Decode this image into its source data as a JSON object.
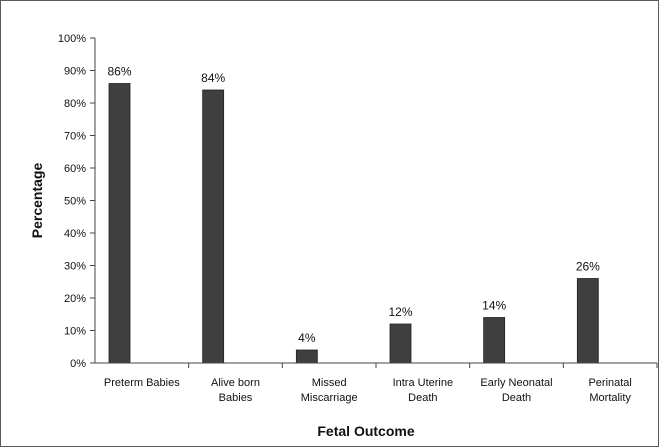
{
  "chart_data": {
    "type": "bar",
    "categories": [
      [
        "Preterm Babies"
      ],
      [
        "Alive born",
        "Babies"
      ],
      [
        "Missed",
        "Miscarriage"
      ],
      [
        "Intra Uterine",
        "Death"
      ],
      [
        "Early Neonatal",
        "Death"
      ],
      [
        "Perinatal",
        "Mortality"
      ]
    ],
    "values": [
      86,
      84,
      4,
      12,
      14,
      26
    ],
    "data_labels": [
      "86%",
      "84%",
      "4%",
      "12%",
      "14%",
      "26%"
    ],
    "xlabel": "Fetal Outcome",
    "ylabel": "Percentage",
    "ylim": [
      0,
      100
    ],
    "yticks": [
      "0%",
      "10%",
      "20%",
      "30%",
      "40%",
      "50%",
      "60%",
      "70%",
      "80%",
      "90%",
      "100%"
    ],
    "grid": false,
    "legend": "none",
    "bar_color": "#3f3f3f"
  }
}
